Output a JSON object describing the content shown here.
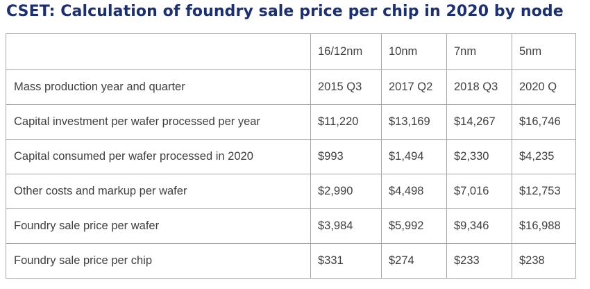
{
  "title": "CSET: Calculation of foundry sale price per chip in 2020 by node",
  "table": {
    "corner": "",
    "columns": [
      "16/12nm",
      "10nm",
      "7nm",
      "5nm"
    ],
    "rows": [
      {
        "label": "Mass production year and quarter",
        "values": [
          "2015 Q3",
          "2017 Q2",
          "2018 Q3",
          "2020 Q"
        ]
      },
      {
        "label": "Capital investment per wafer processed per year",
        "values": [
          "$11,220",
          "$13,169",
          "$14,267",
          "$16,746"
        ]
      },
      {
        "label": "Capital consumed per wafer processed in 2020",
        "values": [
          "$993",
          "$1,494",
          "$2,330",
          "$4,235"
        ]
      },
      {
        "label": "Other costs and markup per wafer",
        "values": [
          "$2,990",
          "$4,498",
          "$7,016",
          "$12,753"
        ]
      },
      {
        "label": "Foundry sale price per wafer",
        "values": [
          "$3,984",
          "$5,992",
          "$9,346",
          "$16,988"
        ]
      },
      {
        "label": "Foundry sale price per chip",
        "values": [
          "$331",
          "$274",
          "$233",
          "$238"
        ]
      }
    ]
  },
  "colors": {
    "title": "#1b3073",
    "text": "#404040",
    "border": "#a6a6a6",
    "background": "#ffffff"
  }
}
